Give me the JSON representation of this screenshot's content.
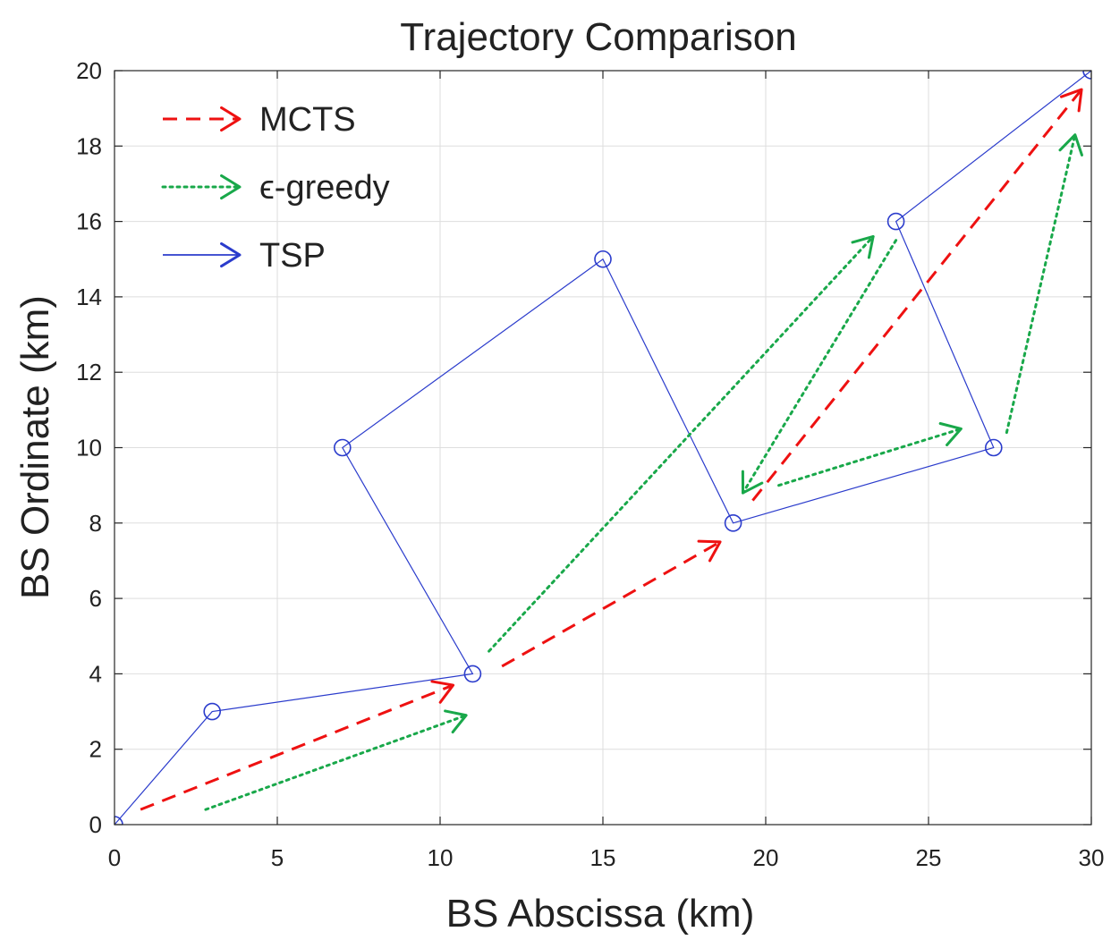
{
  "chart_data": {
    "type": "line",
    "title": "Trajectory Comparison",
    "xlabel": "BS Abscissa (km)",
    "ylabel": "BS Ordinate (km)",
    "xlim": [
      0,
      30
    ],
    "ylim": [
      0,
      20
    ],
    "xticks": [
      0,
      5,
      10,
      15,
      20,
      25,
      30
    ],
    "yticks": [
      0,
      2,
      4,
      6,
      8,
      10,
      12,
      14,
      16,
      18,
      20
    ],
    "grid": true,
    "legend_position": "top-left",
    "legend": [
      {
        "label": "MCTS",
        "series": "mcts"
      },
      {
        "label": "ϵ-greedy",
        "series": "egreedy"
      },
      {
        "label": "TSP",
        "series": "tsp"
      }
    ],
    "series": [
      {
        "id": "tsp",
        "name": "TSP",
        "color": "#2b3ccc",
        "style": "solid",
        "markers": "circle",
        "points": [
          [
            0,
            0
          ],
          [
            3,
            3
          ],
          [
            11,
            4
          ],
          [
            7,
            10
          ],
          [
            15,
            15
          ],
          [
            19,
            8
          ],
          [
            27,
            10
          ],
          [
            24,
            16
          ],
          [
            30,
            20
          ]
        ]
      },
      {
        "id": "mcts",
        "name": "MCTS",
        "color": "#ee1111",
        "style": "dashed",
        "arrows": [
          [
            [
              0.8,
              0.4
            ],
            [
              10.4,
              3.7
            ]
          ],
          [
            [
              11.9,
              4.2
            ],
            [
              18.6,
              7.5
            ]
          ],
          [
            [
              19.6,
              8.6
            ],
            [
              29.7,
              19.5
            ]
          ]
        ]
      },
      {
        "id": "egreedy",
        "name": "ϵ-greedy",
        "color": "#19a84a",
        "style": "dotted",
        "arrows": [
          [
            [
              2.8,
              0.4
            ],
            [
              10.8,
              2.9
            ]
          ],
          [
            [
              11.5,
              4.6
            ],
            [
              23.3,
              15.6
            ]
          ],
          [
            [
              24,
              15.5
            ],
            [
              19.3,
              8.8
            ]
          ],
          [
            [
              20.4,
              9.0
            ],
            [
              26,
              10.5
            ]
          ],
          [
            [
              27.4,
              10.4
            ],
            [
              29.5,
              18.3
            ]
          ]
        ]
      }
    ]
  }
}
